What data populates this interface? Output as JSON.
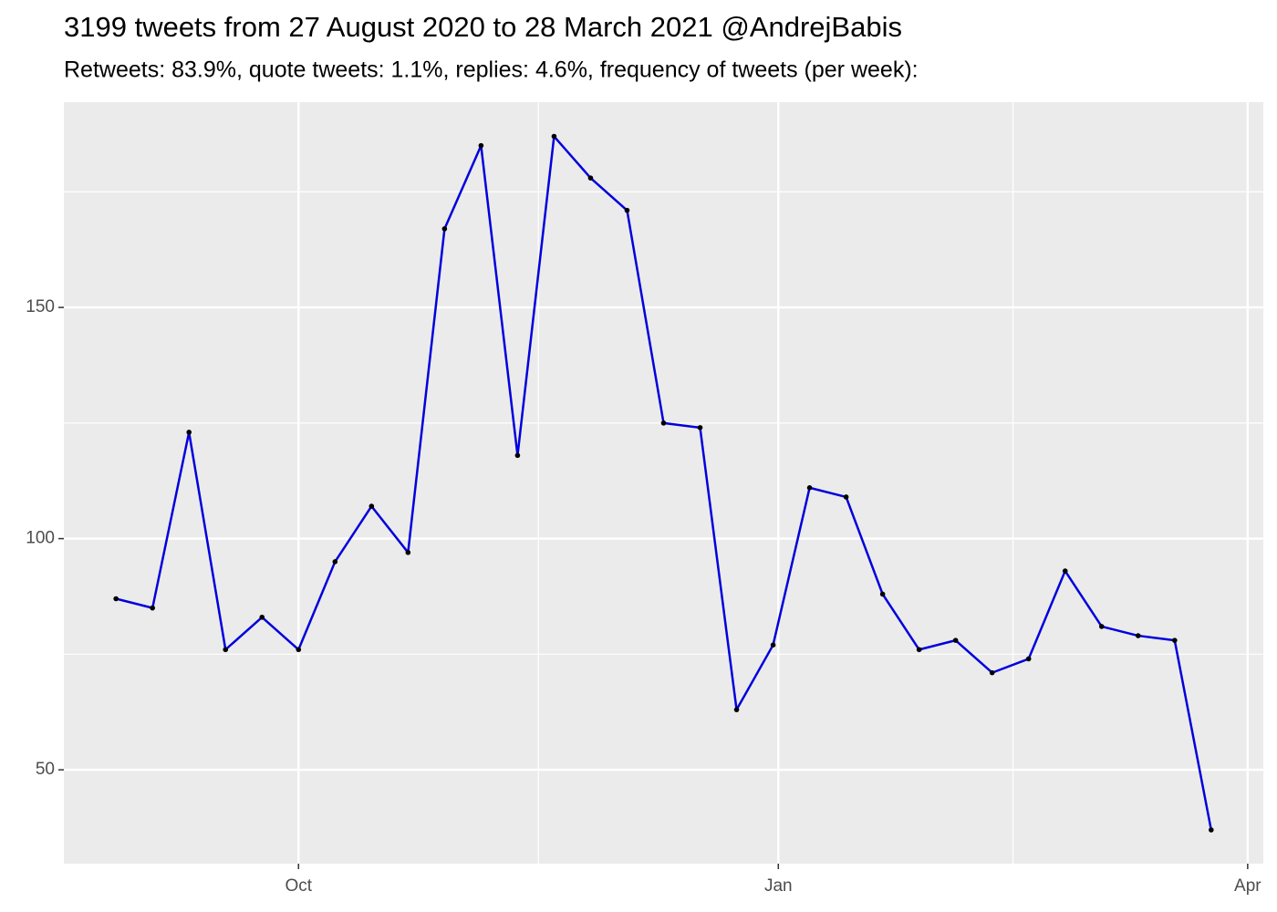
{
  "chart_data": {
    "type": "line",
    "title": "3199 tweets from 27 August 2020 to 28 March 2021 @AndrejBabis",
    "subtitle": "Retweets: 83.9%, quote tweets: 1.1%, replies: 4.6%, frequency of tweets (per week):",
    "x": [
      "2020-08-27",
      "2020-09-03",
      "2020-09-10",
      "2020-09-17",
      "2020-09-24",
      "2020-10-01",
      "2020-10-08",
      "2020-10-15",
      "2020-10-22",
      "2020-10-29",
      "2020-11-05",
      "2020-11-12",
      "2020-11-19",
      "2020-11-26",
      "2020-12-03",
      "2020-12-10",
      "2020-12-17",
      "2020-12-24",
      "2020-12-31",
      "2021-01-07",
      "2021-01-14",
      "2021-01-21",
      "2021-01-28",
      "2021-02-04",
      "2021-02-11",
      "2021-02-18",
      "2021-02-25",
      "2021-03-04",
      "2021-03-11",
      "2021-03-18",
      "2021-03-25"
    ],
    "series": [
      {
        "color": "#0000dd",
        "values": [
          87,
          85,
          123,
          76,
          83,
          76,
          95,
          107,
          97,
          167,
          185,
          118,
          187,
          178,
          171,
          125,
          124,
          63,
          77,
          111,
          109,
          88,
          76,
          78,
          71,
          74,
          93,
          81,
          79,
          78,
          37
        ]
      }
    ],
    "xlim": [
      "2020-08-17",
      "2021-04-04"
    ],
    "xticks": [
      {
        "value": "2020-10-01",
        "label": "Oct"
      },
      {
        "value": "2021-01-01",
        "label": "Jan"
      },
      {
        "value": "2021-04-01",
        "label": "Apr"
      }
    ],
    "ylim": [
      29.7,
      194.4
    ],
    "yticks": [
      50,
      100,
      150
    ],
    "grid": true
  }
}
